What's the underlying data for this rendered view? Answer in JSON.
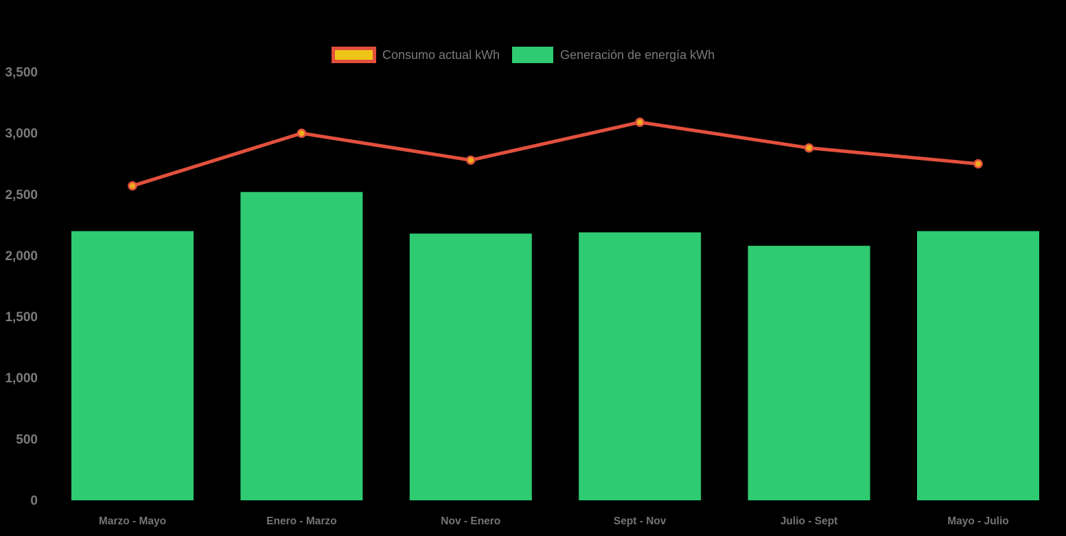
{
  "app": {
    "background_color": "#000000"
  },
  "legend": {
    "position": "top",
    "text_color": "#7a7a7a",
    "items": [
      {
        "label": "Consumo actual kWh",
        "series_type": "line",
        "swatch_fill": "#efc419",
        "swatch_border": "#e2503d"
      },
      {
        "label": "Generación de energía kWh",
        "series_type": "bar",
        "swatch_fill": "#2fcb72",
        "swatch_border": ""
      }
    ]
  },
  "chart_data": {
    "type": "bar",
    "subtype": "bar-and-line-combo",
    "title": "",
    "xlabel": "",
    "ylabel": "",
    "categories": [
      "Marzo - Mayo",
      "Enero - Marzo",
      "Nov - Enero",
      "Sept - Nov",
      "Julio - Sept",
      "Mayo - Julio"
    ],
    "series": [
      {
        "name": "Generación de energía kWh",
        "type": "bar",
        "color": "#2fcb72",
        "values": [
          2200,
          2520,
          2180,
          2190,
          2080,
          2200
        ]
      },
      {
        "name": "Consumo actual kWh",
        "type": "line",
        "color": "#e2503d",
        "marker_fill": "#f0ab1e",
        "marker_stroke": "#e2503d",
        "values": [
          2570,
          3000,
          2780,
          3090,
          2880,
          2750
        ]
      }
    ],
    "ylim": [
      0,
      3500
    ],
    "ytick_step": 500,
    "ytick_labels": [
      "0",
      "500",
      "1,000",
      "1,500",
      "2,000",
      "2,500",
      "3,000",
      "3,500"
    ],
    "axis_text_color": "#7b7b7b",
    "grid": false,
    "legend_position": "top-center"
  }
}
